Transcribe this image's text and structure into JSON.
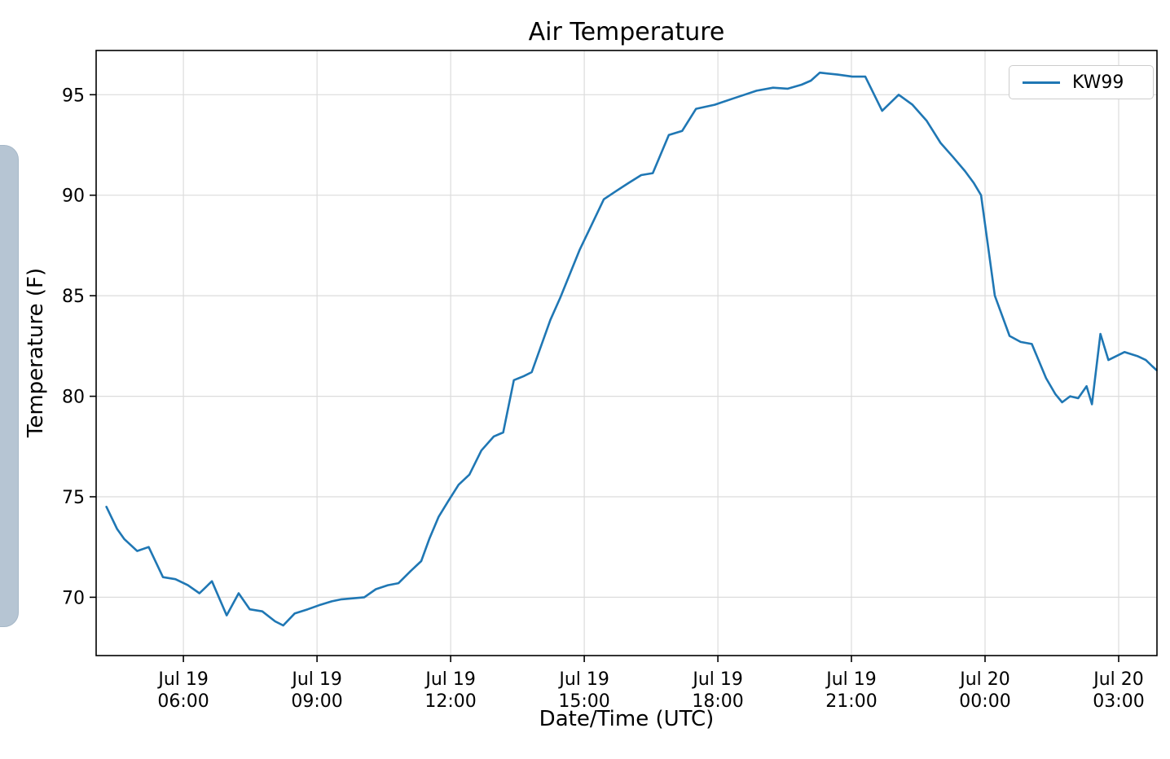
{
  "page": {
    "background": "#ffffff"
  },
  "side_panel": {
    "color": "#b6c5d3"
  },
  "chart_data": {
    "type": "line",
    "title": "Air Temperature",
    "xlabel": "Date/Time (UTC)",
    "ylabel": "Temperature (F)",
    "grid": true,
    "grid_color": "#dcdcdc",
    "spine_color": "#000000",
    "legend": {
      "position": "upper right",
      "entries": [
        {
          "label": "KW99",
          "color": "#1f77b4"
        }
      ]
    },
    "x_unit": "hours since Jul 19 00:00 UTC",
    "xlim": [
      4.04,
      27.86
    ],
    "ylim": [
      67.1,
      97.2
    ],
    "x_ticks": [
      {
        "t": 6,
        "date": "Jul 19",
        "time": "06:00"
      },
      {
        "t": 9,
        "date": "Jul 19",
        "time": "09:00"
      },
      {
        "t": 12,
        "date": "Jul 19",
        "time": "12:00"
      },
      {
        "t": 15,
        "date": "Jul 19",
        "time": "15:00"
      },
      {
        "t": 18,
        "date": "Jul 19",
        "time": "18:00"
      },
      {
        "t": 21,
        "date": "Jul 19",
        "time": "21:00"
      },
      {
        "t": 24,
        "date": "Jul 20",
        "time": "00:00"
      },
      {
        "t": 27,
        "date": "Jul 20",
        "time": "03:00"
      }
    ],
    "y_ticks": [
      70,
      75,
      80,
      85,
      90,
      95
    ],
    "series": [
      {
        "name": "KW99",
        "color": "#1f77b4",
        "points": [
          [
            4.27,
            74.5
          ],
          [
            4.51,
            73.4
          ],
          [
            4.67,
            72.9
          ],
          [
            4.96,
            72.3
          ],
          [
            5.22,
            72.5
          ],
          [
            5.54,
            71.0
          ],
          [
            5.82,
            70.9
          ],
          [
            6.1,
            70.6
          ],
          [
            6.36,
            70.2
          ],
          [
            6.64,
            70.8
          ],
          [
            6.97,
            69.1
          ],
          [
            7.24,
            70.2
          ],
          [
            7.49,
            69.4
          ],
          [
            7.77,
            69.3
          ],
          [
            8.06,
            68.8
          ],
          [
            8.24,
            68.6
          ],
          [
            8.5,
            69.2
          ],
          [
            8.79,
            69.4
          ],
          [
            9.04,
            69.6
          ],
          [
            9.33,
            69.8
          ],
          [
            9.55,
            69.9
          ],
          [
            10.06,
            70.0
          ],
          [
            10.32,
            70.4
          ],
          [
            10.59,
            70.6
          ],
          [
            10.83,
            70.7
          ],
          [
            11.1,
            71.3
          ],
          [
            11.34,
            71.8
          ],
          [
            11.52,
            72.9
          ],
          [
            11.73,
            74.0
          ],
          [
            11.95,
            74.8
          ],
          [
            12.18,
            75.6
          ],
          [
            12.42,
            76.1
          ],
          [
            12.69,
            77.3
          ],
          [
            12.97,
            78.0
          ],
          [
            13.18,
            78.2
          ],
          [
            13.42,
            80.8
          ],
          [
            13.64,
            81.0
          ],
          [
            13.82,
            81.2
          ],
          [
            14.24,
            83.8
          ],
          [
            14.46,
            84.9
          ],
          [
            14.68,
            86.1
          ],
          [
            14.9,
            87.3
          ],
          [
            15.16,
            88.5
          ],
          [
            15.44,
            89.8
          ],
          [
            15.71,
            90.2
          ],
          [
            15.99,
            90.6
          ],
          [
            16.28,
            91.0
          ],
          [
            16.54,
            91.1
          ],
          [
            16.9,
            93.0
          ],
          [
            17.2,
            93.2
          ],
          [
            17.51,
            94.3
          ],
          [
            17.93,
            94.5
          ],
          [
            18.33,
            94.8
          ],
          [
            18.6,
            95.0
          ],
          [
            18.87,
            95.2
          ],
          [
            19.24,
            95.35
          ],
          [
            19.57,
            95.3
          ],
          [
            19.88,
            95.5
          ],
          [
            20.09,
            95.7
          ],
          [
            20.29,
            96.1
          ],
          [
            20.69,
            96.0
          ],
          [
            21.02,
            95.9
          ],
          [
            21.31,
            95.9
          ],
          [
            21.69,
            94.2
          ],
          [
            22.06,
            95.0
          ],
          [
            22.37,
            94.5
          ],
          [
            22.69,
            93.7
          ],
          [
            23.0,
            92.6
          ],
          [
            23.28,
            91.9
          ],
          [
            23.55,
            91.2
          ],
          [
            23.75,
            90.6
          ],
          [
            23.91,
            90.0
          ],
          [
            24.22,
            85.0
          ],
          [
            24.55,
            83.0
          ],
          [
            24.8,
            82.7
          ],
          [
            25.05,
            82.6
          ],
          [
            25.37,
            80.9
          ],
          [
            25.58,
            80.1
          ],
          [
            25.73,
            79.7
          ],
          [
            25.91,
            80.0
          ],
          [
            26.09,
            79.9
          ],
          [
            26.28,
            80.5
          ],
          [
            26.4,
            79.6
          ],
          [
            26.59,
            83.1
          ],
          [
            26.77,
            81.8
          ],
          [
            26.95,
            82.0
          ],
          [
            27.13,
            82.2
          ],
          [
            27.42,
            82.0
          ],
          [
            27.61,
            81.8
          ],
          [
            27.75,
            81.5
          ],
          [
            27.85,
            81.3
          ]
        ]
      }
    ]
  }
}
